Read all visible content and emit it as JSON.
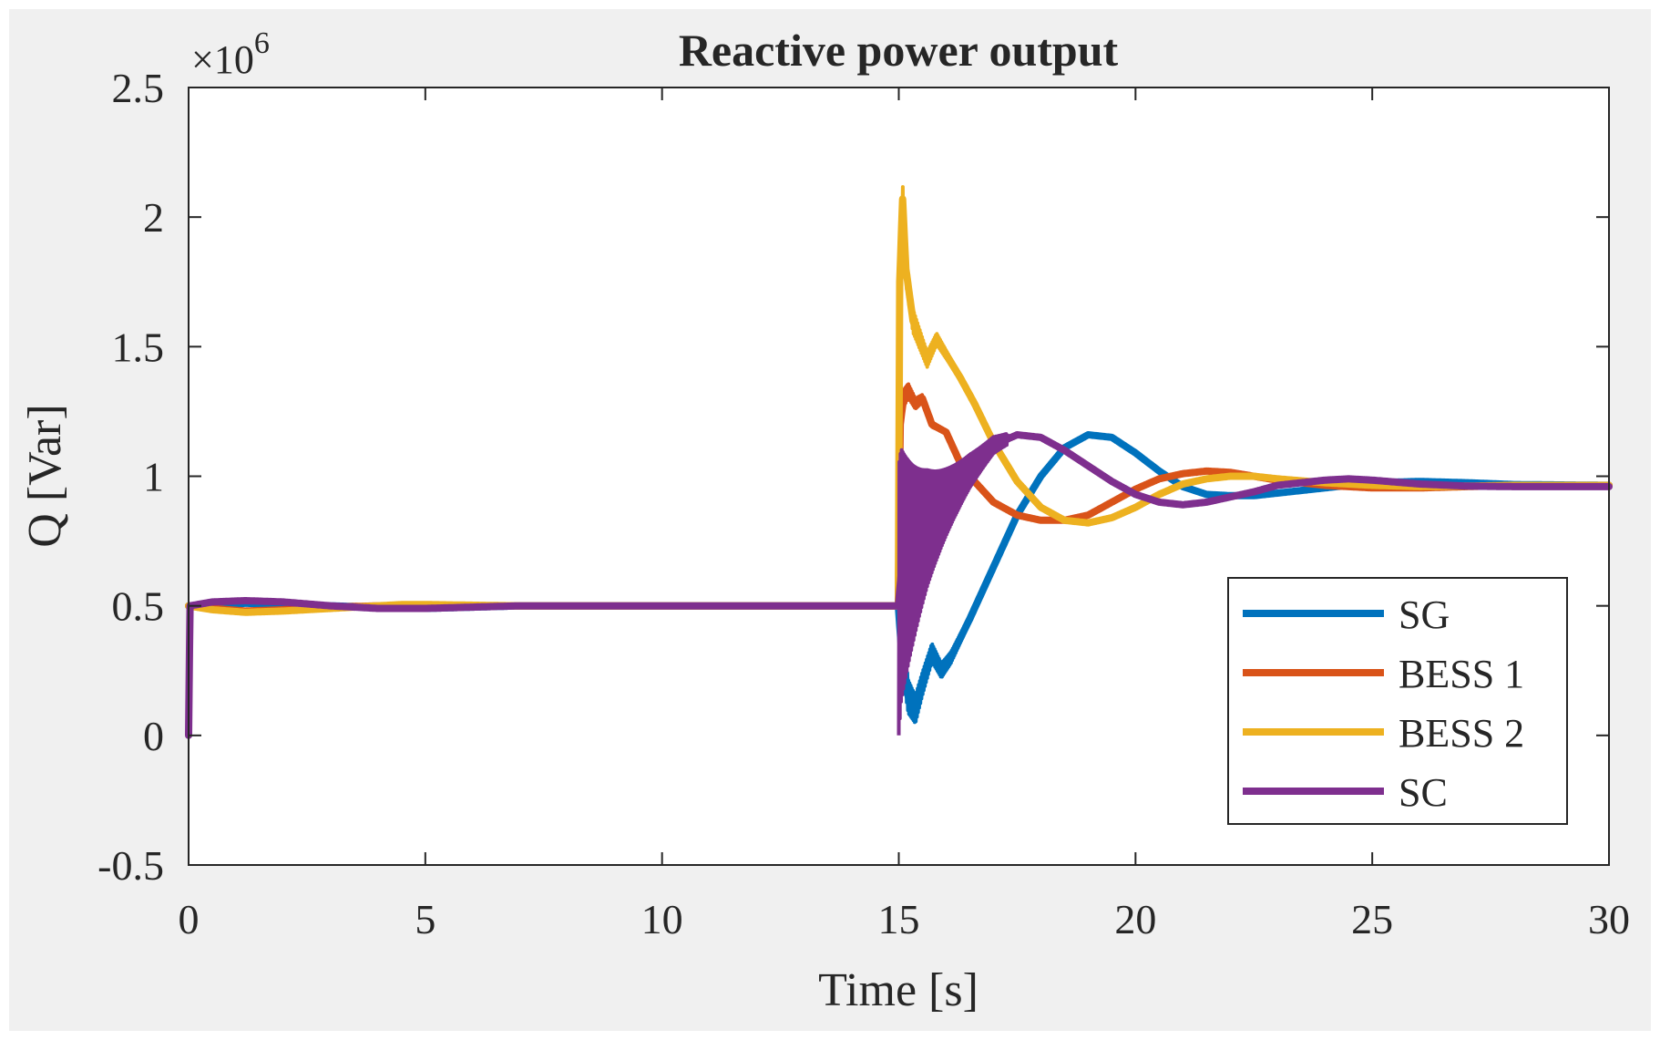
{
  "chart_data": {
    "type": "line",
    "title": "Reactive power output",
    "xlabel": "Time [s]",
    "ylabel": "Q [Var]",
    "exponent_label": "×10",
    "exponent_power": "6",
    "xlim": [
      0,
      30
    ],
    "ylim": [
      -0.5,
      2.5
    ],
    "x_ticks": [
      0,
      5,
      10,
      15,
      20,
      25,
      30
    ],
    "x_tick_labels": [
      "0",
      "5",
      "10",
      "15",
      "20",
      "25",
      "30"
    ],
    "y_ticks": [
      -0.5,
      0,
      0.5,
      1,
      1.5,
      2,
      2.5
    ],
    "y_tick_labels": [
      "-0.5",
      "0",
      "0.5",
      "1",
      "1.5",
      "2",
      "2.5"
    ],
    "legend_location": "lower-right",
    "series": [
      {
        "name": "SG",
        "color": "#0072BD",
        "points": [
          [
            0,
            0.5
          ],
          [
            0.5,
            0.5
          ],
          [
            1.2,
            0.51
          ],
          [
            2,
            0.505
          ],
          [
            3,
            0.5
          ],
          [
            5,
            0.49
          ],
          [
            7,
            0.5
          ],
          [
            10,
            0.5
          ],
          [
            14.99,
            0.5
          ],
          [
            15.05,
            0.35
          ],
          [
            15.2,
            0.15
          ],
          [
            15.35,
            0.1
          ],
          [
            15.5,
            0.2
          ],
          [
            15.7,
            0.32
          ],
          [
            15.9,
            0.25
          ],
          [
            16.1,
            0.3
          ],
          [
            16.5,
            0.45
          ],
          [
            17,
            0.65
          ],
          [
            17.5,
            0.85
          ],
          [
            18,
            1.0
          ],
          [
            18.5,
            1.11
          ],
          [
            19,
            1.16
          ],
          [
            19.5,
            1.15
          ],
          [
            20,
            1.09
          ],
          [
            20.5,
            1.02
          ],
          [
            21,
            0.96
          ],
          [
            21.5,
            0.93
          ],
          [
            22,
            0.925
          ],
          [
            22.5,
            0.925
          ],
          [
            23,
            0.935
          ],
          [
            24,
            0.955
          ],
          [
            25,
            0.975
          ],
          [
            26,
            0.98
          ],
          [
            27,
            0.975
          ],
          [
            28,
            0.968
          ],
          [
            30,
            0.965
          ]
        ],
        "band": {
          "x0": 15.0,
          "x1": 16.4,
          "amp": 0.08,
          "decay": 1.2
        }
      },
      {
        "name": "BESS 1",
        "color": "#D95319",
        "points": [
          [
            0,
            0.5
          ],
          [
            0.5,
            0.49
          ],
          [
            1.2,
            0.48
          ],
          [
            2,
            0.485
          ],
          [
            3,
            0.495
          ],
          [
            4,
            0.5
          ],
          [
            5,
            0.5
          ],
          [
            7,
            0.5
          ],
          [
            10,
            0.5
          ],
          [
            14.99,
            0.5
          ],
          [
            15.03,
            1.2
          ],
          [
            15.1,
            1.3
          ],
          [
            15.2,
            1.33
          ],
          [
            15.35,
            1.28
          ],
          [
            15.5,
            1.3
          ],
          [
            15.7,
            1.2
          ],
          [
            16,
            1.17
          ],
          [
            16.3,
            1.05
          ],
          [
            16.6,
            0.98
          ],
          [
            17,
            0.9
          ],
          [
            17.5,
            0.85
          ],
          [
            18,
            0.83
          ],
          [
            18.5,
            0.83
          ],
          [
            19,
            0.85
          ],
          [
            19.5,
            0.9
          ],
          [
            20,
            0.95
          ],
          [
            20.5,
            0.99
          ],
          [
            21,
            1.01
          ],
          [
            21.5,
            1.02
          ],
          [
            22,
            1.015
          ],
          [
            22.5,
            1.0
          ],
          [
            23,
            0.985
          ],
          [
            24,
            0.965
          ],
          [
            25,
            0.955
          ],
          [
            26,
            0.955
          ],
          [
            27,
            0.96
          ],
          [
            28,
            0.965
          ],
          [
            30,
            0.965
          ]
        ],
        "band": {
          "x0": 15.0,
          "x1": 16.0,
          "amp": 0.04,
          "decay": 2.0
        }
      },
      {
        "name": "BESS 2",
        "color": "#EDB120",
        "points": [
          [
            0,
            0.5
          ],
          [
            0.5,
            0.485
          ],
          [
            1.2,
            0.475
          ],
          [
            2,
            0.48
          ],
          [
            3,
            0.49
          ],
          [
            4.5,
            0.505
          ],
          [
            5,
            0.505
          ],
          [
            7,
            0.5
          ],
          [
            10,
            0.5
          ],
          [
            14.99,
            0.5
          ],
          [
            15.02,
            1.75
          ],
          [
            15.08,
            2.07
          ],
          [
            15.15,
            1.8
          ],
          [
            15.3,
            1.6
          ],
          [
            15.5,
            1.5
          ],
          [
            15.6,
            1.45
          ],
          [
            15.8,
            1.53
          ],
          [
            16,
            1.47
          ],
          [
            16.3,
            1.38
          ],
          [
            16.6,
            1.28
          ],
          [
            17,
            1.13
          ],
          [
            17.5,
            0.98
          ],
          [
            18,
            0.88
          ],
          [
            18.5,
            0.83
          ],
          [
            19,
            0.82
          ],
          [
            19.5,
            0.84
          ],
          [
            20,
            0.88
          ],
          [
            20.5,
            0.93
          ],
          [
            21,
            0.97
          ],
          [
            21.5,
            0.99
          ],
          [
            22,
            1.0
          ],
          [
            22.5,
            1.0
          ],
          [
            23,
            0.99
          ],
          [
            24,
            0.975
          ],
          [
            25,
            0.965
          ],
          [
            26,
            0.96
          ],
          [
            27,
            0.962
          ],
          [
            28,
            0.965
          ],
          [
            30,
            0.965
          ]
        ],
        "band": {
          "x0": 15.0,
          "x1": 16.8,
          "amp": 0.07,
          "decay": 1.5
        }
      },
      {
        "name": "SC",
        "color": "#7E2F8E",
        "points": [
          [
            0,
            0.0
          ],
          [
            0.03,
            0.5
          ],
          [
            0.5,
            0.515
          ],
          [
            1.2,
            0.52
          ],
          [
            2,
            0.515
          ],
          [
            3,
            0.5
          ],
          [
            4,
            0.49
          ],
          [
            5,
            0.49
          ],
          [
            6,
            0.495
          ],
          [
            7,
            0.5
          ],
          [
            10,
            0.5
          ],
          [
            14.99,
            0.5
          ],
          [
            15.05,
            0.62
          ],
          [
            15.3,
            0.7
          ],
          [
            15.6,
            0.8
          ],
          [
            16,
            0.9
          ],
          [
            16.5,
            1.02
          ],
          [
            17,
            1.12
          ],
          [
            17.5,
            1.16
          ],
          [
            18,
            1.15
          ],
          [
            18.5,
            1.1
          ],
          [
            19,
            1.04
          ],
          [
            19.5,
            0.98
          ],
          [
            20,
            0.93
          ],
          [
            20.5,
            0.9
          ],
          [
            21,
            0.89
          ],
          [
            21.5,
            0.9
          ],
          [
            22,
            0.92
          ],
          [
            22.5,
            0.94
          ],
          [
            23,
            0.965
          ],
          [
            24,
            0.985
          ],
          [
            24.5,
            0.99
          ],
          [
            25,
            0.985
          ],
          [
            26,
            0.97
          ],
          [
            27,
            0.962
          ],
          [
            28,
            0.96
          ],
          [
            30,
            0.96
          ]
        ],
        "band": {
          "x0": 15.0,
          "x1": 17.3,
          "amp": 0.52,
          "decay": 1.4
        }
      }
    ]
  }
}
